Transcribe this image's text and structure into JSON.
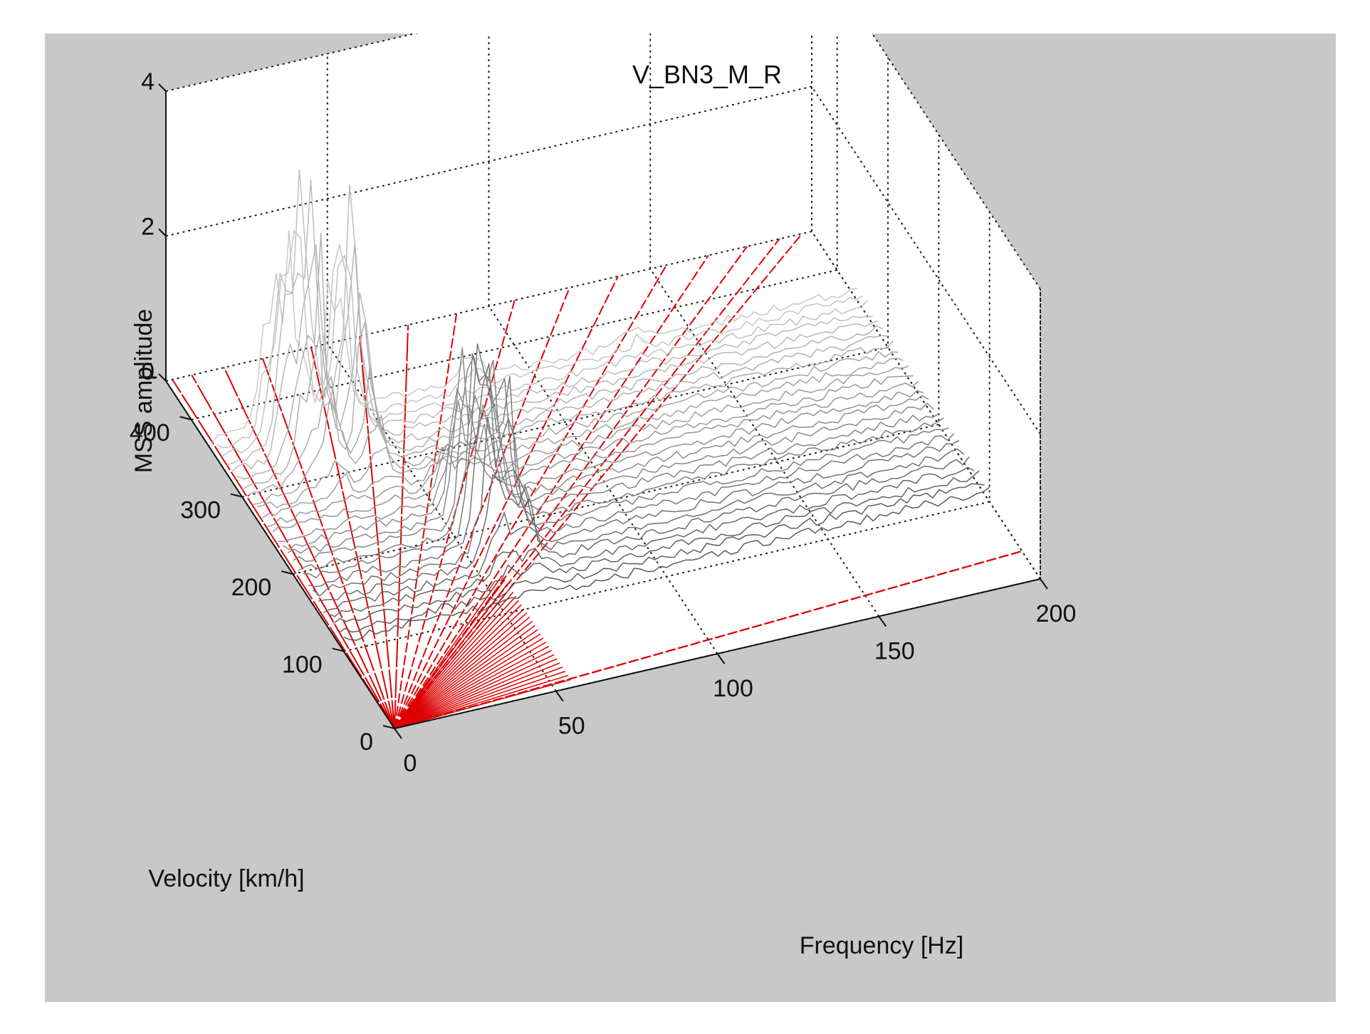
{
  "chart_data": {
    "type": "3d-waterfall",
    "title": "V_BN3_M_R",
    "xlabel": "Frequency [Hz]",
    "ylabel": "Velocity [km/h]",
    "zlabel": "MSS amplitude",
    "xlim": [
      0,
      200
    ],
    "ylim": [
      0,
      450
    ],
    "zlim": [
      0,
      4
    ],
    "x_ticks": [
      "0",
      "50",
      "100",
      "150",
      "200"
    ],
    "y_ticks": [
      "0",
      "100",
      "200",
      "300",
      "400"
    ],
    "z_ticks": [
      "0",
      "2",
      "4"
    ],
    "grid": true,
    "order_lines_color": "#dd0000",
    "order_line_endpoints_hz_at_max_velocity": [
      2,
      8,
      18,
      30,
      45,
      60,
      75,
      90,
      108,
      125,
      140,
      155,
      168,
      180,
      190,
      197,
      200,
      200,
      200,
      200
    ],
    "waterfall_peaks": [
      {
        "frequency_hz": 25,
        "velocity_kmh": 330,
        "amplitude": 3.8
      },
      {
        "frequency_hz": 38,
        "velocity_kmh": 330,
        "amplitude": 3.2
      },
      {
        "frequency_hz": 18,
        "velocity_kmh": 345,
        "amplitude": 2.2
      },
      {
        "frequency_hz": 55,
        "velocity_kmh": 190,
        "amplitude": 2.9
      },
      {
        "frequency_hz": 63,
        "velocity_kmh": 190,
        "amplitude": 2.2
      },
      {
        "frequency_hz": 80,
        "velocity_kmh": 400,
        "amplitude": 1.0
      },
      {
        "frequency_hz": 130,
        "velocity_kmh": 410,
        "amplitude": 1.0
      }
    ]
  }
}
